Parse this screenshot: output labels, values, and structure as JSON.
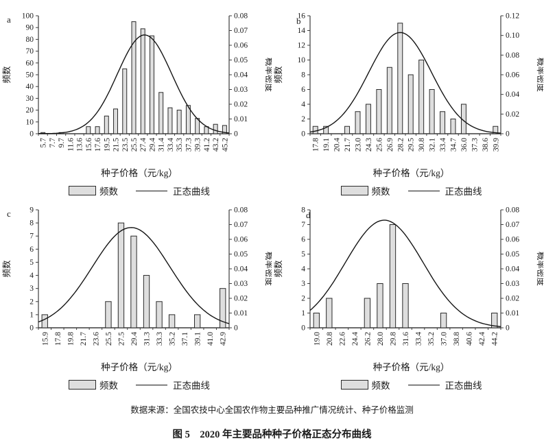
{
  "figure": {
    "source_note": "数据来源：全国农技中心全国农作物主要品种推广情况统计、种子价格监测",
    "caption": "图 5　2020 年主要品种种子价格正态分布曲线"
  },
  "legend": {
    "bar_label": "频数",
    "line_label": "正态曲线"
  },
  "colors": {
    "bar_fill": "#dedede",
    "bar_stroke": "#2a2a2a",
    "curve": "#141414",
    "axis": "#3c3c3c",
    "text": "#1a1a1a"
  },
  "chart_data": [
    {
      "type": "bar",
      "panel_label": "a",
      "xlabel": "种子价格（元/kg）",
      "ylabel_left": "频数",
      "ylabel_right": "概率密度",
      "legend": [
        "频数",
        "正态曲线"
      ],
      "categories": [
        5.7,
        7.7,
        9.7,
        11.6,
        13.6,
        15.6,
        17.6,
        19.5,
        21.5,
        23.5,
        25.5,
        27.4,
        29.4,
        31.4,
        33.4,
        35.3,
        37.3,
        39.3,
        41.2,
        43.2,
        45.2
      ],
      "values": [
        1,
        0,
        1,
        0,
        0,
        6,
        6,
        15,
        21,
        55,
        95,
        89,
        83,
        35,
        22,
        20,
        24,
        13,
        6,
        8,
        7
      ],
      "ylim_left": [
        0,
        100
      ],
      "ytick_step_left": 10,
      "ylim_right": [
        0,
        0.08
      ],
      "ytick_step_right": 0.01,
      "grid": false,
      "normal_curve": {
        "mean": 27.8,
        "sigma": 5.9,
        "peak_density": 0.067
      }
    },
    {
      "type": "bar",
      "panel_label": "b",
      "xlabel": "种子价格（元/kg）",
      "ylabel_left": "频数",
      "ylabel_right": "概率密度",
      "legend": [
        "频数",
        "正态曲线"
      ],
      "categories": [
        17.8,
        19.1,
        20.4,
        21.7,
        23.0,
        24.3,
        25.6,
        26.9,
        28.2,
        29.5,
        30.8,
        32.1,
        33.4,
        34.7,
        36.0,
        37.3,
        38.6,
        39.9
      ],
      "values": [
        1,
        1,
        0,
        1,
        3,
        4,
        6,
        9,
        15,
        8,
        10,
        6,
        3,
        2,
        4,
        0,
        0,
        1
      ],
      "ylim_left": [
        0,
        16
      ],
      "ytick_step_left": 2,
      "ylim_right": [
        0,
        0.12
      ],
      "ytick_step_right": 0.02,
      "grid": false,
      "normal_curve": {
        "mean": 28.2,
        "sigma": 3.85,
        "peak_density": 0.103
      }
    },
    {
      "type": "bar",
      "panel_label": "c",
      "xlabel": "种子价格（元/kg）",
      "ylabel_left": "频数",
      "ylabel_right": "概率密度",
      "legend": [
        "频数",
        "正态曲线"
      ],
      "categories": [
        15.9,
        17.8,
        19.8,
        21.7,
        23.6,
        25.5,
        27.5,
        29.4,
        31.3,
        33.3,
        35.2,
        37.1,
        39.1,
        41.0,
        42.9
      ],
      "values": [
        1,
        0,
        0,
        0,
        0,
        2,
        8,
        7,
        4,
        2,
        1,
        0,
        1,
        0,
        3
      ],
      "ylim_left": [
        0,
        9
      ],
      "ytick_step_left": 1,
      "ylim_right": [
        0,
        0.08
      ],
      "ytick_step_right": 0.01,
      "grid": false,
      "normal_curve": {
        "mean": 29.0,
        "sigma": 5.9,
        "peak_density": 0.068
      }
    },
    {
      "type": "bar",
      "panel_label": "d",
      "xlabel": "种子价格（元/kg）",
      "ylabel_left": "频数",
      "ylabel_right": "概率密度",
      "legend": [
        "频数",
        "正态曲线"
      ],
      "categories": [
        19.0,
        20.8,
        22.6,
        24.4,
        26.2,
        28.0,
        29.8,
        31.6,
        33.4,
        35.2,
        37.0,
        38.8,
        40.6,
        42.4,
        44.2
      ],
      "values": [
        1,
        2,
        0,
        0,
        2,
        3,
        7,
        3,
        0,
        0,
        1,
        0,
        0,
        0,
        1
      ],
      "ylim_left": [
        0,
        8
      ],
      "ytick_step_left": 1,
      "ylim_right": [
        0,
        0.08
      ],
      "ytick_step_right": 0.01,
      "grid": false,
      "normal_curve": {
        "mean": 28.6,
        "sigma": 5.5,
        "peak_density": 0.073
      }
    }
  ]
}
